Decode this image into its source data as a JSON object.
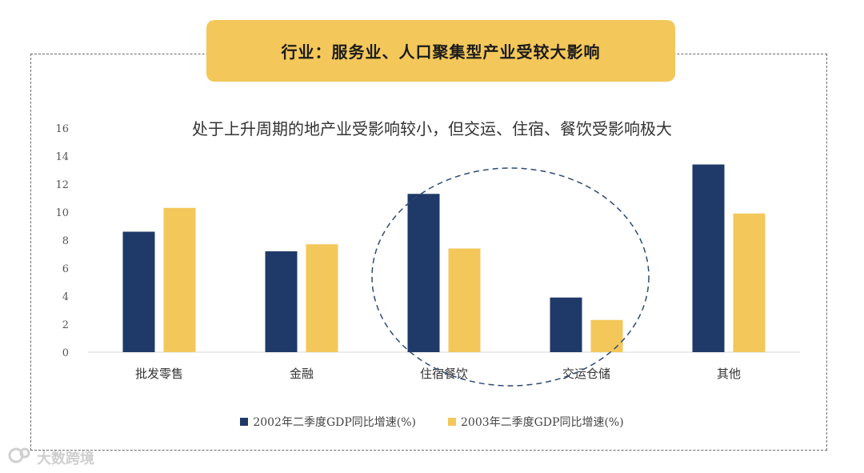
{
  "banner": {
    "title": "行业：服务业、人口聚集型产业受较大影响"
  },
  "chart_data": {
    "type": "bar",
    "title": "处于上升周期的地产业受影响较小，但交运、住宿、餐饮受影响极大",
    "categories": [
      "批发零售",
      "金融",
      "住宿餐饮",
      "交运仓储",
      "其他"
    ],
    "series": [
      {
        "name": "2002年二季度GDP同比增速(%)",
        "color": "#1f3a68",
        "values": [
          8.6,
          7.2,
          11.3,
          3.9,
          13.4
        ]
      },
      {
        "name": "2003年二季度GDP同比增速(%)",
        "color": "#f3c75a",
        "values": [
          10.3,
          7.7,
          7.4,
          2.3,
          9.9
        ]
      }
    ],
    "yticks": [
      "0",
      "2",
      "4",
      "6",
      "8",
      "10",
      "12",
      "14",
      "16"
    ],
    "ylim": [
      0,
      16
    ],
    "grid": false,
    "legend": "bottom",
    "annotation": "dashed ellipse around 住宿餐饮 and 交运仓储"
  },
  "watermark": {
    "text": "大数跨境"
  }
}
